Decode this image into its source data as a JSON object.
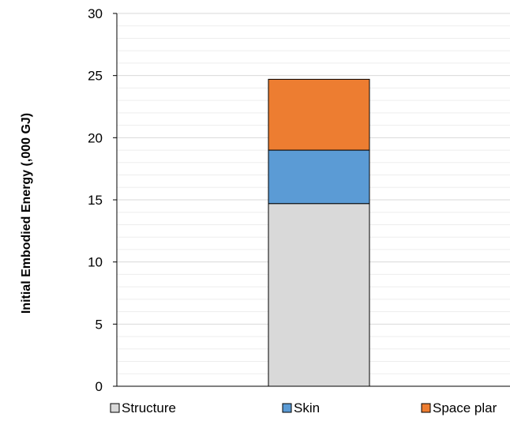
{
  "chart_data": {
    "type": "bar",
    "stacked": true,
    "categories": [
      ""
    ],
    "series": [
      {
        "name": "Structure",
        "values": [
          14.7
        ],
        "color": "#d9d9d9"
      },
      {
        "name": "Skin",
        "values": [
          4.3
        ],
        "color": "#5b9bd5"
      },
      {
        "name": "Space plar",
        "values": [
          5.7
        ],
        "color": "#ed7d31"
      }
    ],
    "title": "",
    "xlabel": "",
    "ylabel": "Initial Embodied Energy (,000 GJ)",
    "ylim": [
      0,
      30
    ],
    "yticks": [
      0,
      5,
      10,
      15,
      20,
      25,
      30
    ],
    "grid": true,
    "minor_grid": true,
    "legend_position": "bottom"
  }
}
